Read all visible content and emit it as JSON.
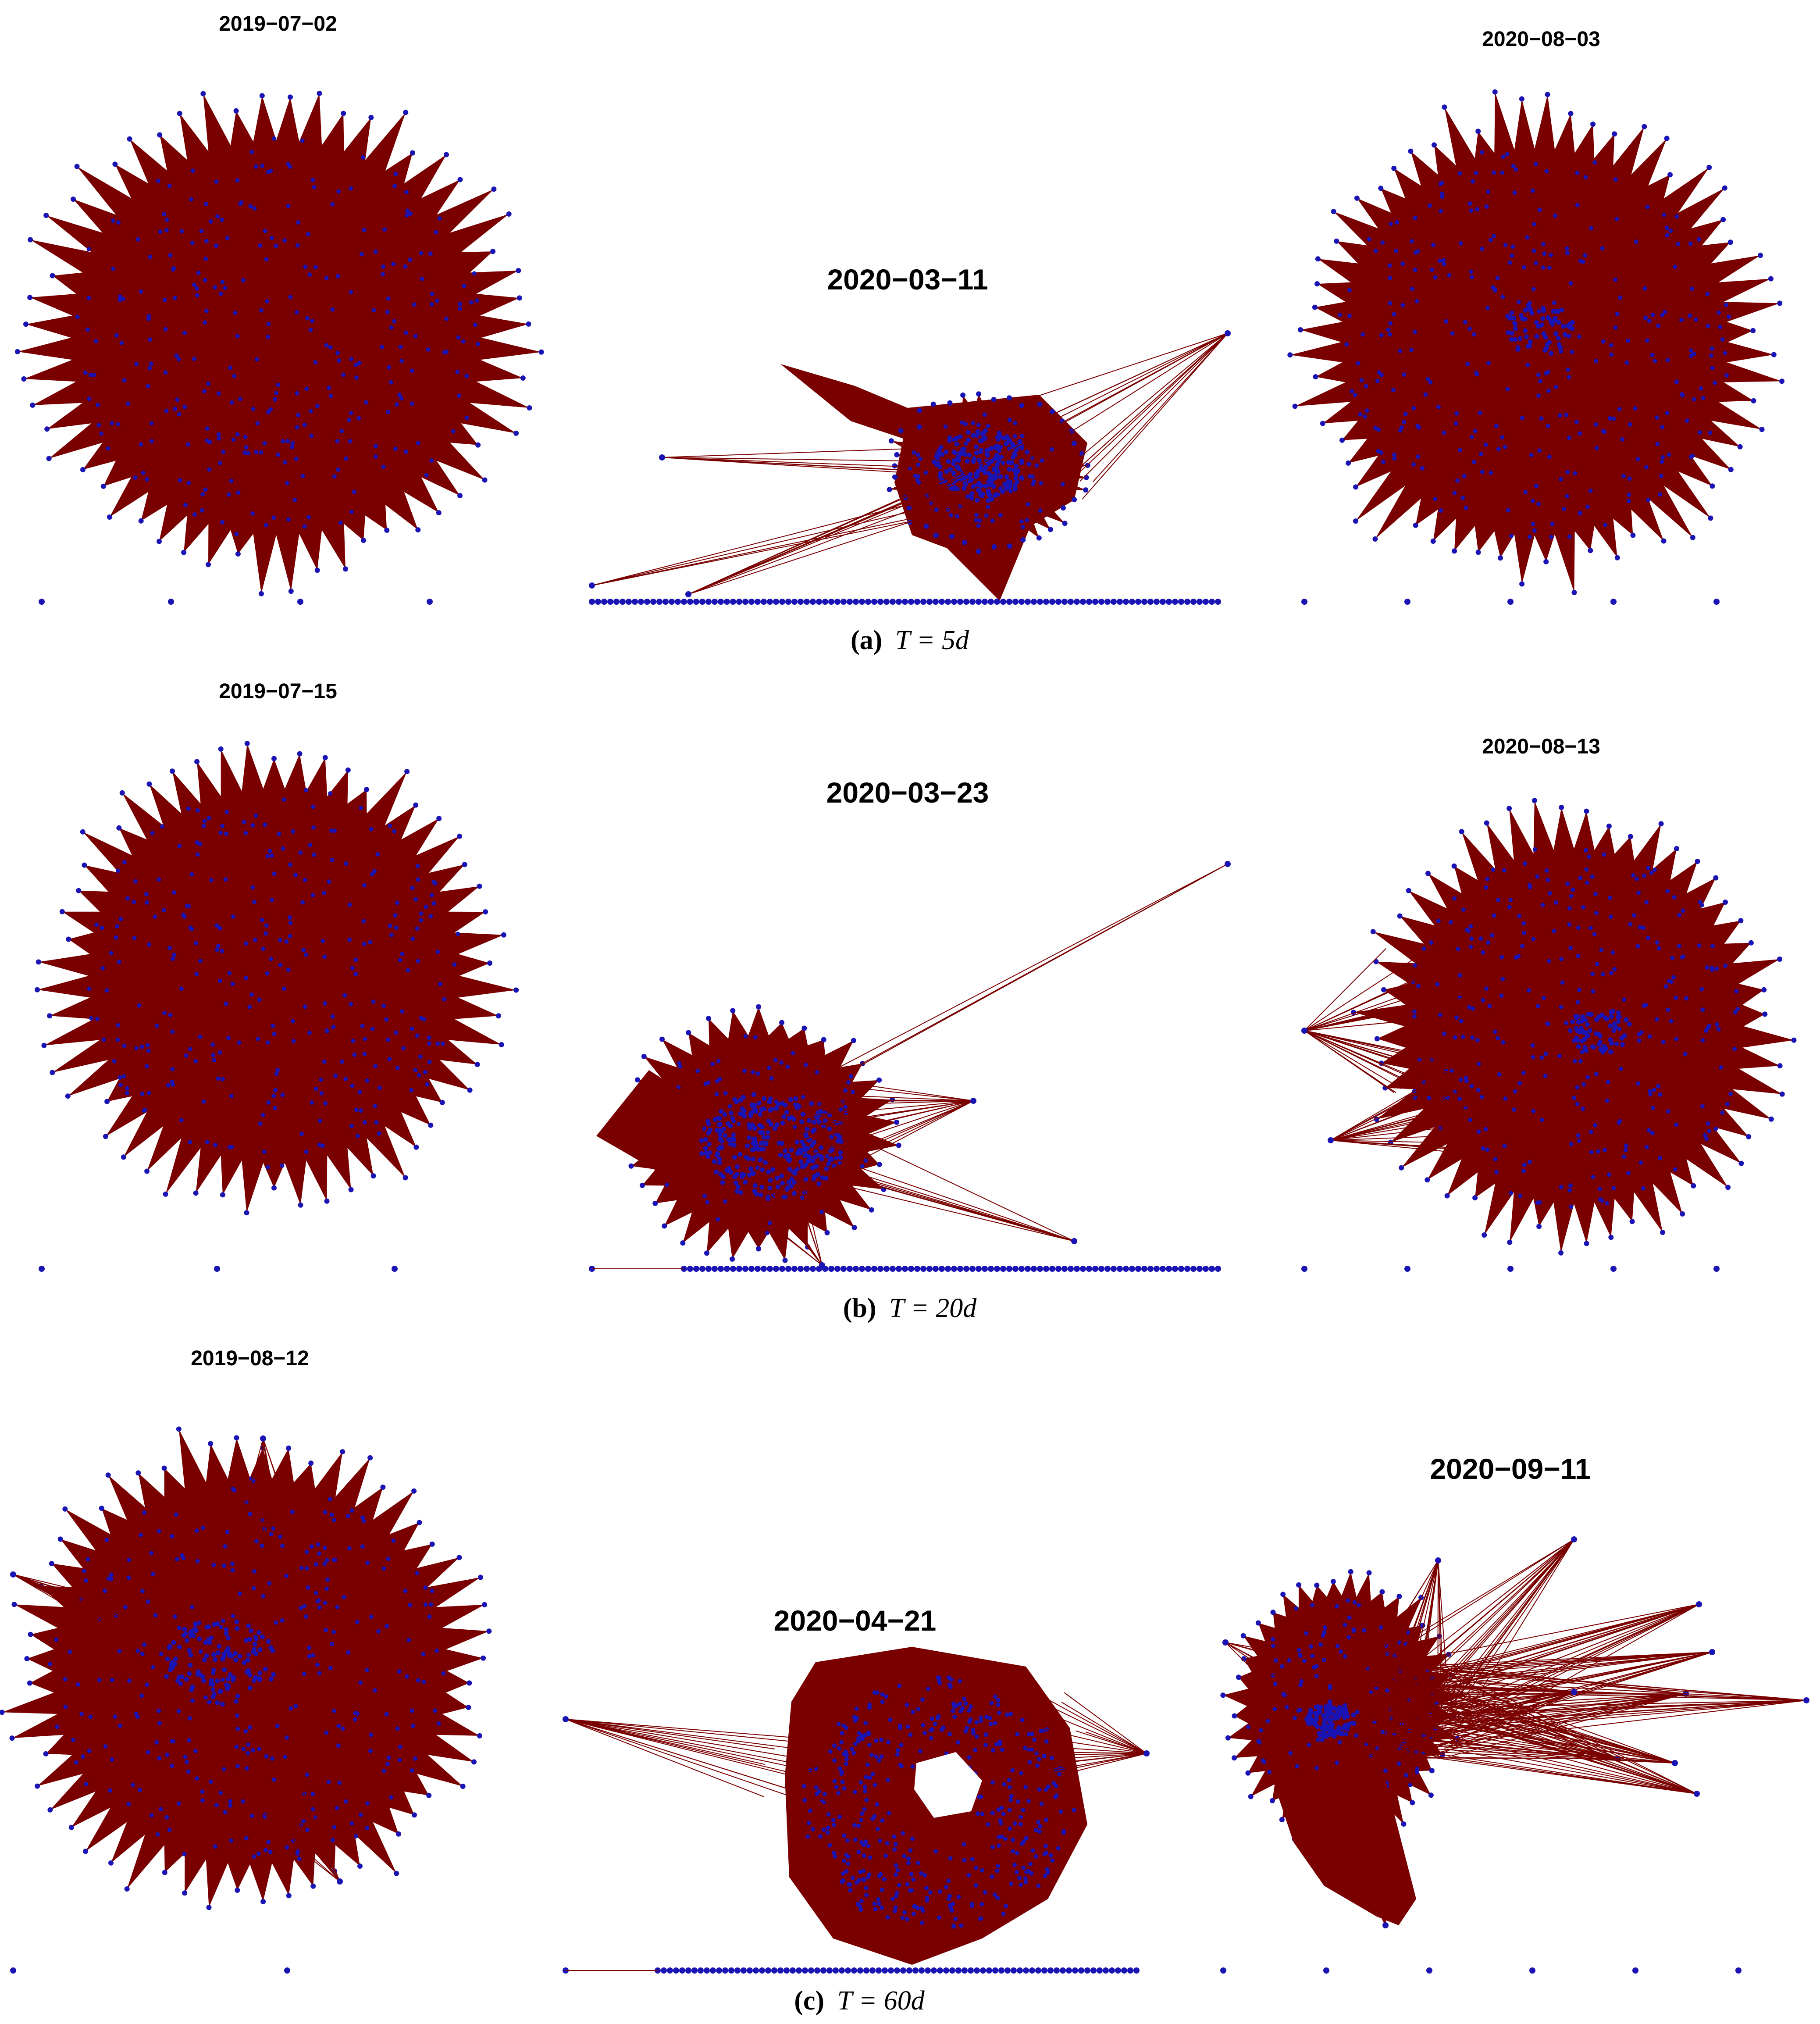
{
  "figure": {
    "colors": {
      "edge": "#7a0000",
      "node": "#1a14b4",
      "background": "#ffffff"
    },
    "rows": [
      {
        "caption_label": "(a)",
        "caption_text": "T = 5d",
        "panels": [
          {
            "date": "2019−07−02"
          },
          {
            "date": "2020−03−11"
          },
          {
            "date": "2020−08−03"
          }
        ]
      },
      {
        "caption_label": "(b)",
        "caption_text": "T = 20d",
        "panels": [
          {
            "date": "2019−07−15"
          },
          {
            "date": "2020−03−23"
          },
          {
            "date": "2020−08−13"
          }
        ]
      },
      {
        "caption_label": "(c)",
        "caption_text": "T = 60d",
        "panels": [
          {
            "date": "2019−08−12"
          },
          {
            "date": "2020−04−21"
          },
          {
            "date": "2020−09−11"
          }
        ]
      }
    ]
  }
}
